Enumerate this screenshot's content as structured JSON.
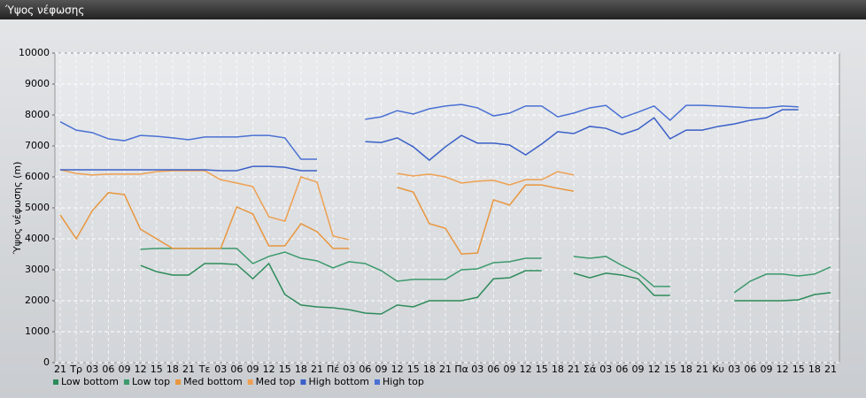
{
  "chart_data": {
    "type": "line",
    "title": "Ύψος νέφωσης",
    "y_label": "Ύψος νέφωσης (m)",
    "categories": [
      "21",
      "Τρ",
      "03",
      "06",
      "09",
      "12",
      "15",
      "18",
      "21",
      "Τε",
      "03",
      "06",
      "09",
      "12",
      "15",
      "18",
      "21",
      "Πέ",
      "03",
      "06",
      "09",
      "12",
      "15",
      "18",
      "21",
      "Πα",
      "03",
      "06",
      "09",
      "12",
      "15",
      "18",
      "21",
      "Σά",
      "03",
      "06",
      "09",
      "12",
      "15",
      "18",
      "21",
      "Κυ",
      "03",
      "06",
      "09",
      "12",
      "15",
      "18",
      "21"
    ],
    "ylim": [
      0,
      10000
    ],
    "yticks": [
      0,
      1000,
      2000,
      3000,
      4000,
      5000,
      6000,
      7000,
      8000,
      9000,
      10000
    ],
    "grid": true,
    "series": [
      {
        "name": "Low bottom",
        "color": "#2e8b5a",
        "values": [
          null,
          null,
          null,
          null,
          null,
          3140,
          2940,
          2830,
          2830,
          3200,
          3200,
          3170,
          2710,
          3200,
          2200,
          1860,
          1800,
          1770,
          1710,
          1600,
          1570,
          1860,
          1800,
          2000,
          2000,
          2000,
          2110,
          2710,
          2740,
          2970,
          2970,
          null,
          2890,
          2740,
          2890,
          2830,
          2710,
          2170,
          2170,
          null,
          null,
          null,
          2000,
          2000,
          2000,
          2000,
          2030,
          2200,
          2260
        ]
      },
      {
        "name": "Low top",
        "color": "#3c9a6c",
        "values": [
          null,
          null,
          null,
          null,
          null,
          3660,
          3690,
          3690,
          3690,
          3690,
          3690,
          3690,
          3200,
          3430,
          3570,
          3370,
          3290,
          3060,
          3260,
          3200,
          2970,
          2630,
          2690,
          2690,
          2690,
          3000,
          3030,
          3230,
          3260,
          3370,
          3370,
          null,
          3430,
          3370,
          3430,
          3140,
          2890,
          2460,
          2460,
          null,
          null,
          null,
          2260,
          2630,
          2860,
          2860,
          2800,
          2860,
          3090
        ]
      },
      {
        "name": "Med bottom",
        "color": "#e8963e",
        "values": [
          4770,
          4000,
          4910,
          5490,
          5430,
          4310,
          4000,
          3690,
          3690,
          3690,
          3690,
          5030,
          4800,
          3770,
          3770,
          4490,
          4230,
          3690,
          3690,
          null,
          null,
          5660,
          5510,
          4490,
          4340,
          3510,
          3540,
          5260,
          5090,
          5740,
          5740,
          5630,
          5540,
          null,
          null,
          null,
          null,
          null,
          null,
          null,
          null,
          null,
          null,
          null,
          null,
          null,
          null,
          null,
          null
        ]
      },
      {
        "name": "Med top",
        "color": "#eea052",
        "values": [
          6230,
          6110,
          6060,
          6090,
          6090,
          6090,
          6170,
          6200,
          6200,
          6200,
          5910,
          5800,
          5690,
          4710,
          4570,
          6000,
          5830,
          4090,
          3970,
          null,
          null,
          6110,
          6030,
          6090,
          6000,
          5800,
          5860,
          5890,
          5740,
          5910,
          5910,
          6170,
          6060,
          null,
          null,
          null,
          null,
          null,
          null,
          null,
          null,
          null,
          null,
          null,
          null,
          null,
          null,
          null,
          null
        ]
      },
      {
        "name": "High bottom",
        "color": "#3a5fc8",
        "values": [
          6230,
          6230,
          6230,
          6230,
          6230,
          6230,
          6230,
          6230,
          6230,
          6230,
          6200,
          6200,
          6340,
          6340,
          6310,
          6200,
          6200,
          null,
          null,
          7140,
          7110,
          7260,
          6970,
          6540,
          6970,
          7340,
          7090,
          7090,
          7030,
          6710,
          7060,
          7460,
          7400,
          7630,
          7570,
          7370,
          7540,
          7910,
          7230,
          7510,
          7510,
          7630,
          7710,
          7830,
          7910,
          8170,
          8170,
          null,
          null
        ]
      },
      {
        "name": "High top",
        "color": "#4a70d4",
        "values": [
          7780,
          7510,
          7430,
          7230,
          7170,
          7340,
          7310,
          7260,
          7200,
          7290,
          7290,
          7290,
          7340,
          7340,
          7260,
          6570,
          6570,
          null,
          null,
          7860,
          7940,
          8140,
          8030,
          8200,
          8290,
          8340,
          8230,
          7970,
          8060,
          8290,
          8290,
          7940,
          8060,
          8230,
          8310,
          7910,
          8090,
          8290,
          7830,
          8310,
          8310,
          8290,
          8260,
          8230,
          8230,
          8290,
          8260,
          null,
          null
        ]
      }
    ]
  }
}
